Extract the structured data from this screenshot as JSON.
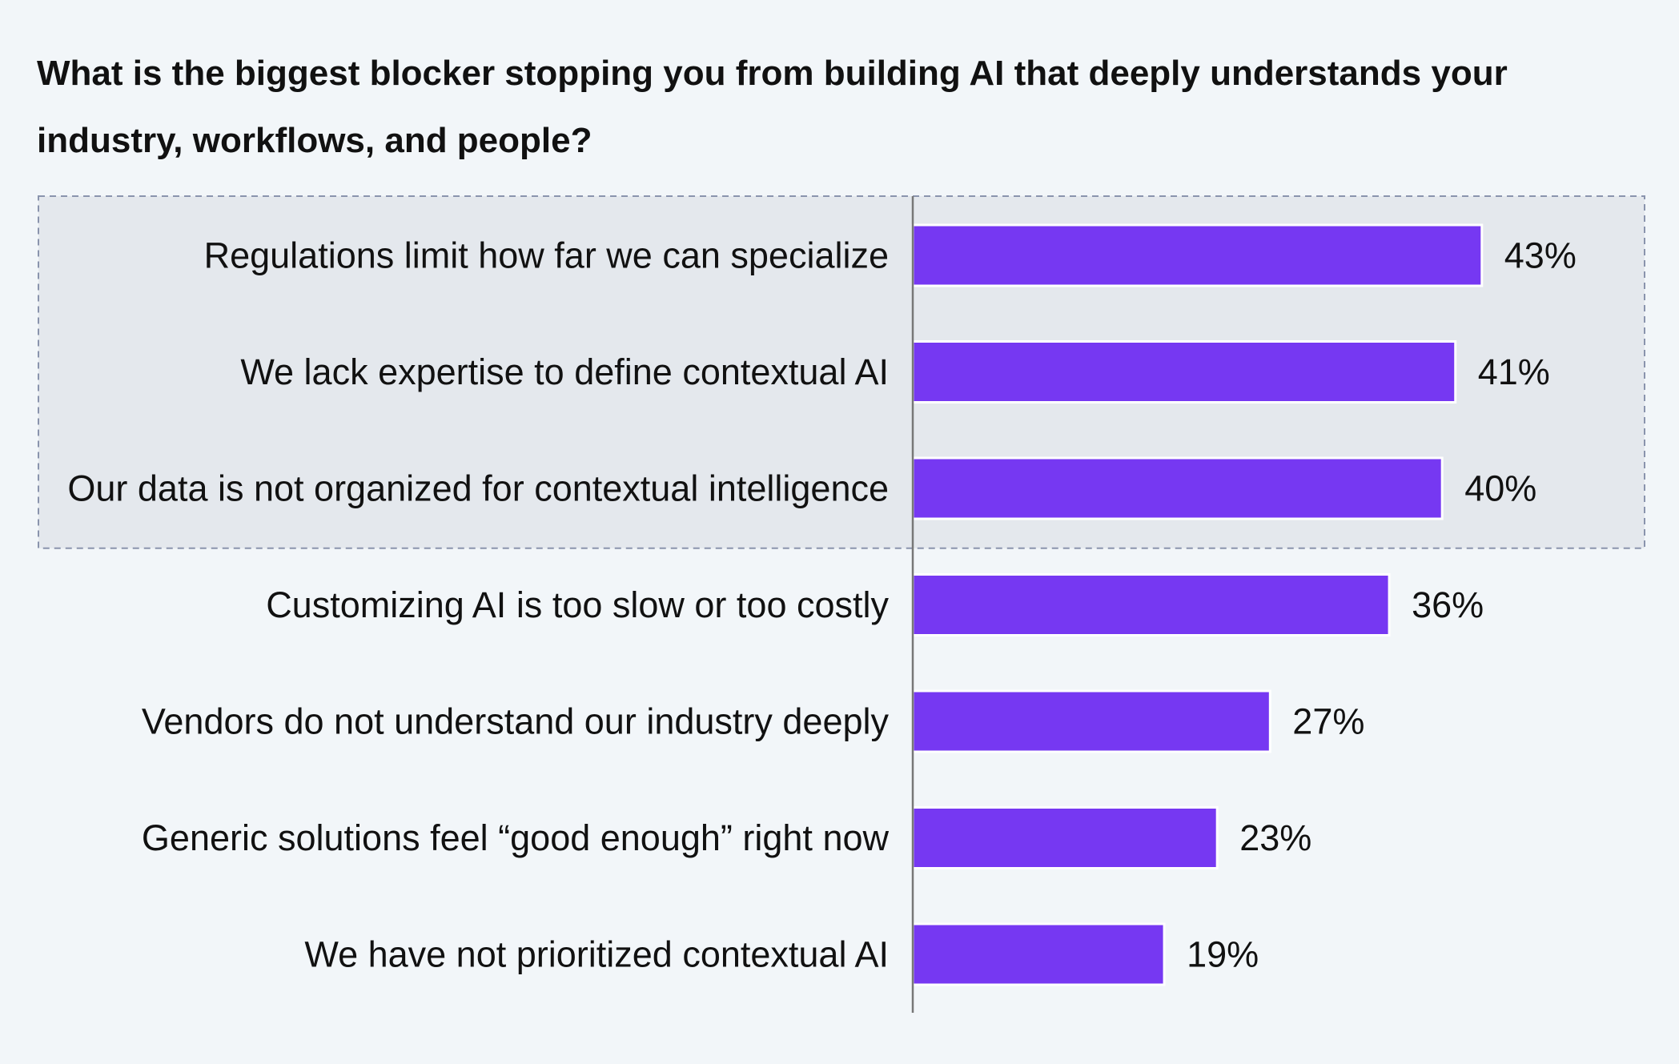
{
  "chart_data": {
    "type": "bar",
    "orientation": "horizontal",
    "title": "What is the biggest blocker stopping you from building AI that deeply understands your industry, workflows, and people?",
    "categories": [
      "Regulations limit how far we can specialize",
      "We lack expertise to define contextual AI",
      "Our data is not organized for contextual intelligence",
      "Customizing AI is too slow or too costly",
      "Vendors do not understand our industry deeply",
      "Generic solutions feel “good enough” right now",
      "We have not prioritized contextual AI"
    ],
    "values": [
      43,
      41,
      40,
      36,
      27,
      23,
      19
    ],
    "value_labels": [
      "43%",
      "41%",
      "40%",
      "36%",
      "27%",
      "23%",
      "19%"
    ],
    "unit": "%",
    "highlighted_categories": 3,
    "grid": false,
    "legend": "none",
    "colors": {
      "bar": "#7638f2",
      "bar_outline": "#ffffff",
      "highlight_fill": "#e4e8ed",
      "highlight_border": "#8a94ad",
      "axis": "#777777",
      "background": "#f2f6f9",
      "text": "#111111"
    }
  }
}
